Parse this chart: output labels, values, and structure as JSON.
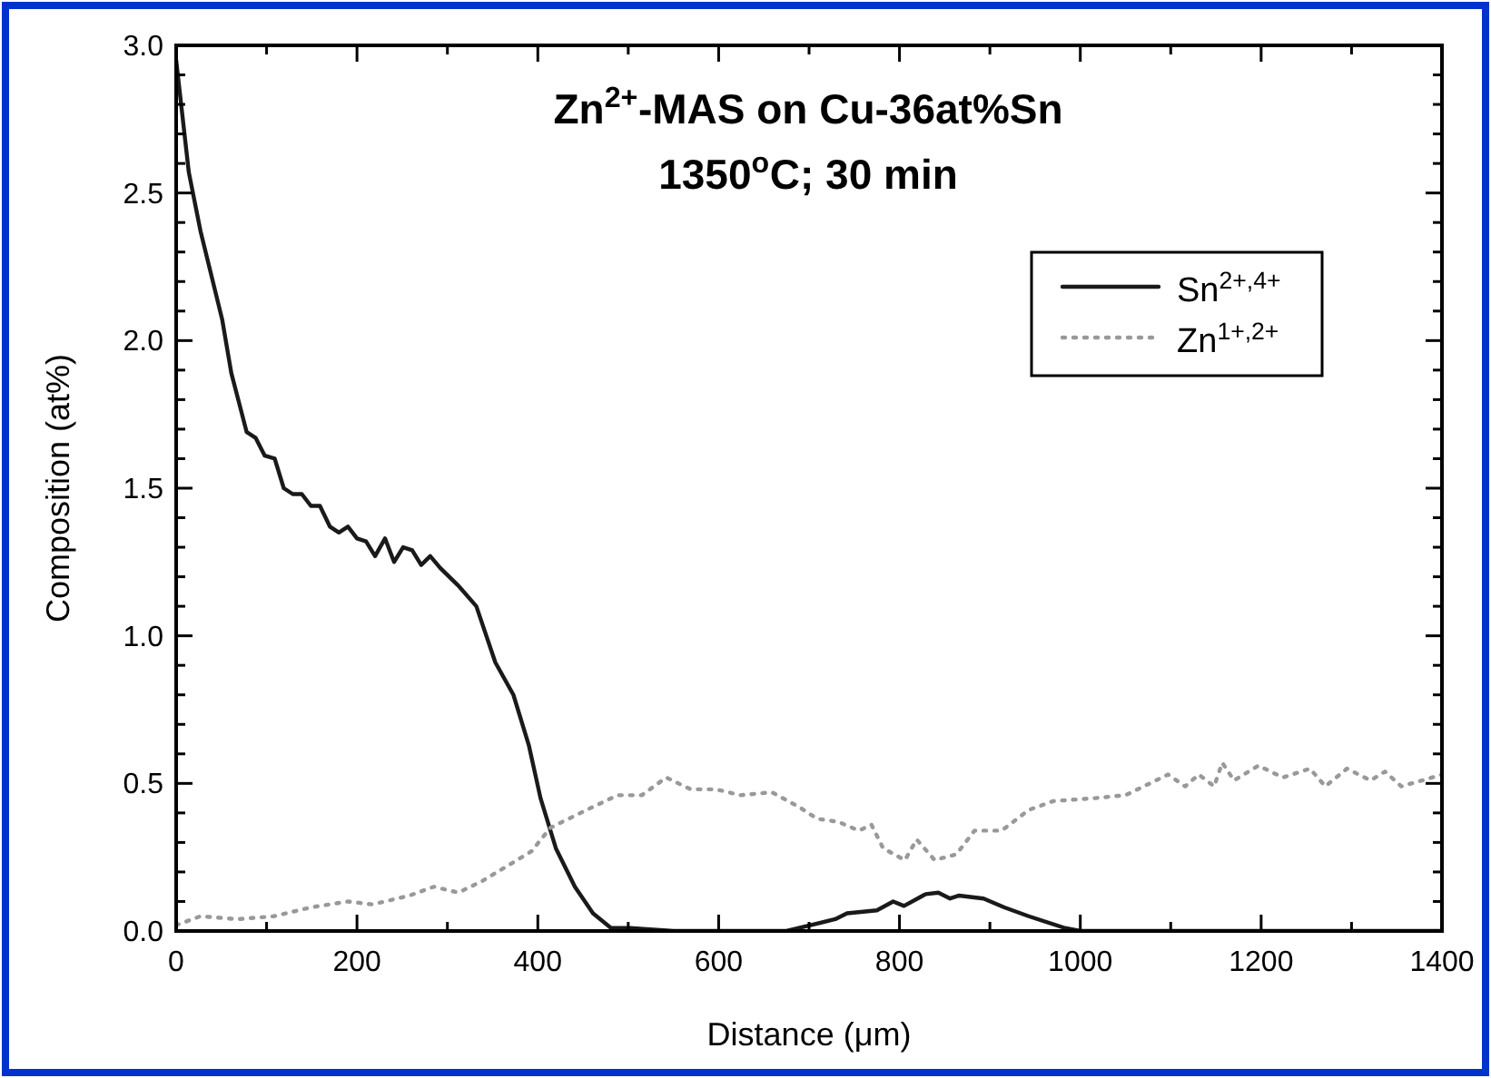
{
  "chart_data": {
    "type": "line",
    "title": "Zn$^{2+}$-MAS on Cu-36at%Sn\n1350$^{o}$C; 30 min",
    "xlabel": "Distance (μm)",
    "ylabel": "Composition (at%)",
    "xlim": [
      0,
      1400
    ],
    "xticks": [
      0,
      {
        "value": 100,
        "label": null
      },
      200,
      {
        "value": 300,
        "label": null
      },
      400,
      {
        "value": 500,
        "label": null
      },
      600,
      {
        "value": 700,
        "label": null
      },
      800,
      {
        "value": 900,
        "label": null
      },
      1000,
      {
        "value": 1100,
        "label": null
      },
      1200,
      {
        "value": 1300,
        "label": null
      },
      1400
    ],
    "ylim": [
      0,
      3
    ],
    "yticks": [
      {
        "value": 0,
        "label": "0.0"
      },
      {
        "value": 0.1,
        "label": null
      },
      {
        "value": 0.2,
        "label": null
      },
      {
        "value": 0.3,
        "label": null
      },
      {
        "value": 0.4,
        "label": null
      },
      {
        "value": 0.5,
        "label": "0.5"
      },
      {
        "value": 0.6,
        "label": null
      },
      {
        "value": 0.7,
        "label": null
      },
      {
        "value": 0.8,
        "label": null
      },
      {
        "value": 0.9,
        "label": null
      },
      {
        "value": 1,
        "label": "1.0"
      },
      {
        "value": 1.1,
        "label": null
      },
      {
        "value": 1.2,
        "label": null
      },
      {
        "value": 1.3,
        "label": null
      },
      {
        "value": 1.4,
        "label": null
      },
      {
        "value": 1.5,
        "label": "1.5"
      },
      {
        "value": 1.6,
        "label": null
      },
      {
        "value": 1.7,
        "label": null
      },
      {
        "value": 1.8,
        "label": null
      },
      {
        "value": 1.9,
        "label": null
      },
      {
        "value": 2,
        "label": "2.0"
      },
      {
        "value": 2.1,
        "label": null
      },
      {
        "value": 2.2,
        "label": null
      },
      {
        "value": 2.3,
        "label": null
      },
      {
        "value": 2.4,
        "label": null
      },
      {
        "value": 2.5,
        "label": "2.5"
      },
      {
        "value": 2.6,
        "label": null
      },
      {
        "value": 2.7,
        "label": null
      },
      {
        "value": 2.8,
        "label": null
      },
      {
        "value": 2.9,
        "label": null
      },
      {
        "value": 3,
        "label": "3.0"
      }
    ],
    "grid": false,
    "legend": "top right",
    "marker": "none",
    "series": [
      {
        "name": "Sn$^{2+,4+}$",
        "color": "#1a1a1a",
        "line_style": "solid",
        "x": [
          0,
          14,
          27,
          51,
          61,
          78,
          88,
          98,
          109,
          119,
          129,
          139,
          149,
          159,
          170,
          180,
          190,
          200,
          210,
          220,
          231,
          241,
          251,
          261,
          271,
          281,
          292,
          312,
          332,
          353,
          373,
          390,
          403,
          420,
          441,
          461,
          481,
          502,
          550,
          600,
          650,
          675,
          729,
          742,
          775,
          793,
          805,
          829,
          843,
          856,
          866,
          893,
          916,
          943,
          983,
          1000,
          1100,
          1200,
          1300,
          1400
        ],
        "values": [
          2.95,
          2.57,
          2.37,
          2.07,
          1.89,
          1.69,
          1.67,
          1.61,
          1.6,
          1.5,
          1.48,
          1.48,
          1.44,
          1.44,
          1.37,
          1.35,
          1.37,
          1.33,
          1.32,
          1.27,
          1.33,
          1.25,
          1.3,
          1.29,
          1.24,
          1.27,
          1.23,
          1.17,
          1.1,
          0.91,
          0.8,
          0.63,
          0.45,
          0.28,
          0.15,
          0.06,
          0.01,
          0.01,
          0,
          0,
          0,
          0,
          0.04,
          0.06,
          0.07,
          0.1,
          0.085,
          0.125,
          0.13,
          0.11,
          0.12,
          0.11,
          0.08,
          0.05,
          0.01,
          0,
          0,
          0,
          0,
          0
        ]
      },
      {
        "name": "Zn$^{1+,2+}$",
        "color": "#999999",
        "line_style": "dotted",
        "x": [
          0,
          27,
          68,
          108,
          149,
          190,
          217,
          258,
          285,
          312,
          339,
          366,
          393,
          414,
          454,
          488,
          515,
          542,
          569,
          597,
          624,
          659,
          689,
          709,
          732,
          755,
          769,
          782,
          806,
          819,
          839,
          863,
          883,
          913,
          943,
          970,
          1016,
          1050,
          1077,
          1097,
          1116,
          1131,
          1148,
          1157,
          1170,
          1197,
          1224,
          1254,
          1271,
          1295,
          1321,
          1337,
          1355,
          1378,
          1400
        ],
        "values": [
          0.02,
          0.05,
          0.04,
          0.05,
          0.08,
          0.1,
          0.09,
          0.12,
          0.15,
          0.13,
          0.17,
          0.22,
          0.27,
          0.35,
          0.41,
          0.46,
          0.46,
          0.52,
          0.48,
          0.48,
          0.46,
          0.47,
          0.42,
          0.38,
          0.37,
          0.34,
          0.36,
          0.28,
          0.24,
          0.31,
          0.24,
          0.26,
          0.34,
          0.34,
          0.41,
          0.44,
          0.45,
          0.46,
          0.5,
          0.53,
          0.49,
          0.53,
          0.49,
          0.57,
          0.51,
          0.56,
          0.52,
          0.55,
          0.49,
          0.55,
          0.51,
          0.54,
          0.49,
          0.51,
          0.53
        ]
      }
    ]
  }
}
